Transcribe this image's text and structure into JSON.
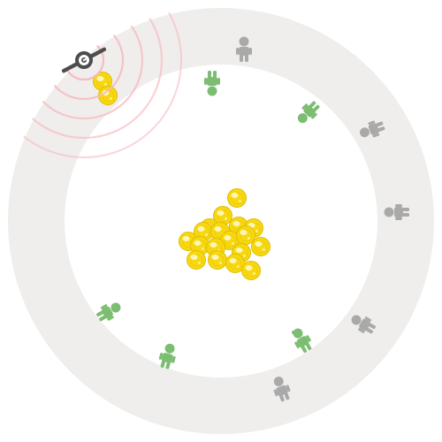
{
  "colors": {
    "background": "#ffffff",
    "track_ring": "#efeeec",
    "gold": "#f7d810",
    "gold_dark": "#e0bc00",
    "gold_shine": "#fff6b8",
    "green": "#7cbd72",
    "gray": "#a9a9a9",
    "dark": "#4d4d4d",
    "pulse": "#f7b8bf"
  },
  "icons": {
    "sensor": "radar-emitter-icon",
    "person": "person-icon",
    "coin": "gold-coin-icon"
  },
  "players": [
    {
      "state": "gray"
    },
    {
      "state": "green"
    },
    {
      "state": "green"
    },
    {
      "state": "gray"
    },
    {
      "state": "gray"
    },
    {
      "state": "gray"
    },
    {
      "state": "green"
    },
    {
      "state": "gray"
    },
    {
      "state": "green"
    },
    {
      "state": "green"
    }
  ],
  "gold_pile_count": 18,
  "carried_gold_count": 2
}
